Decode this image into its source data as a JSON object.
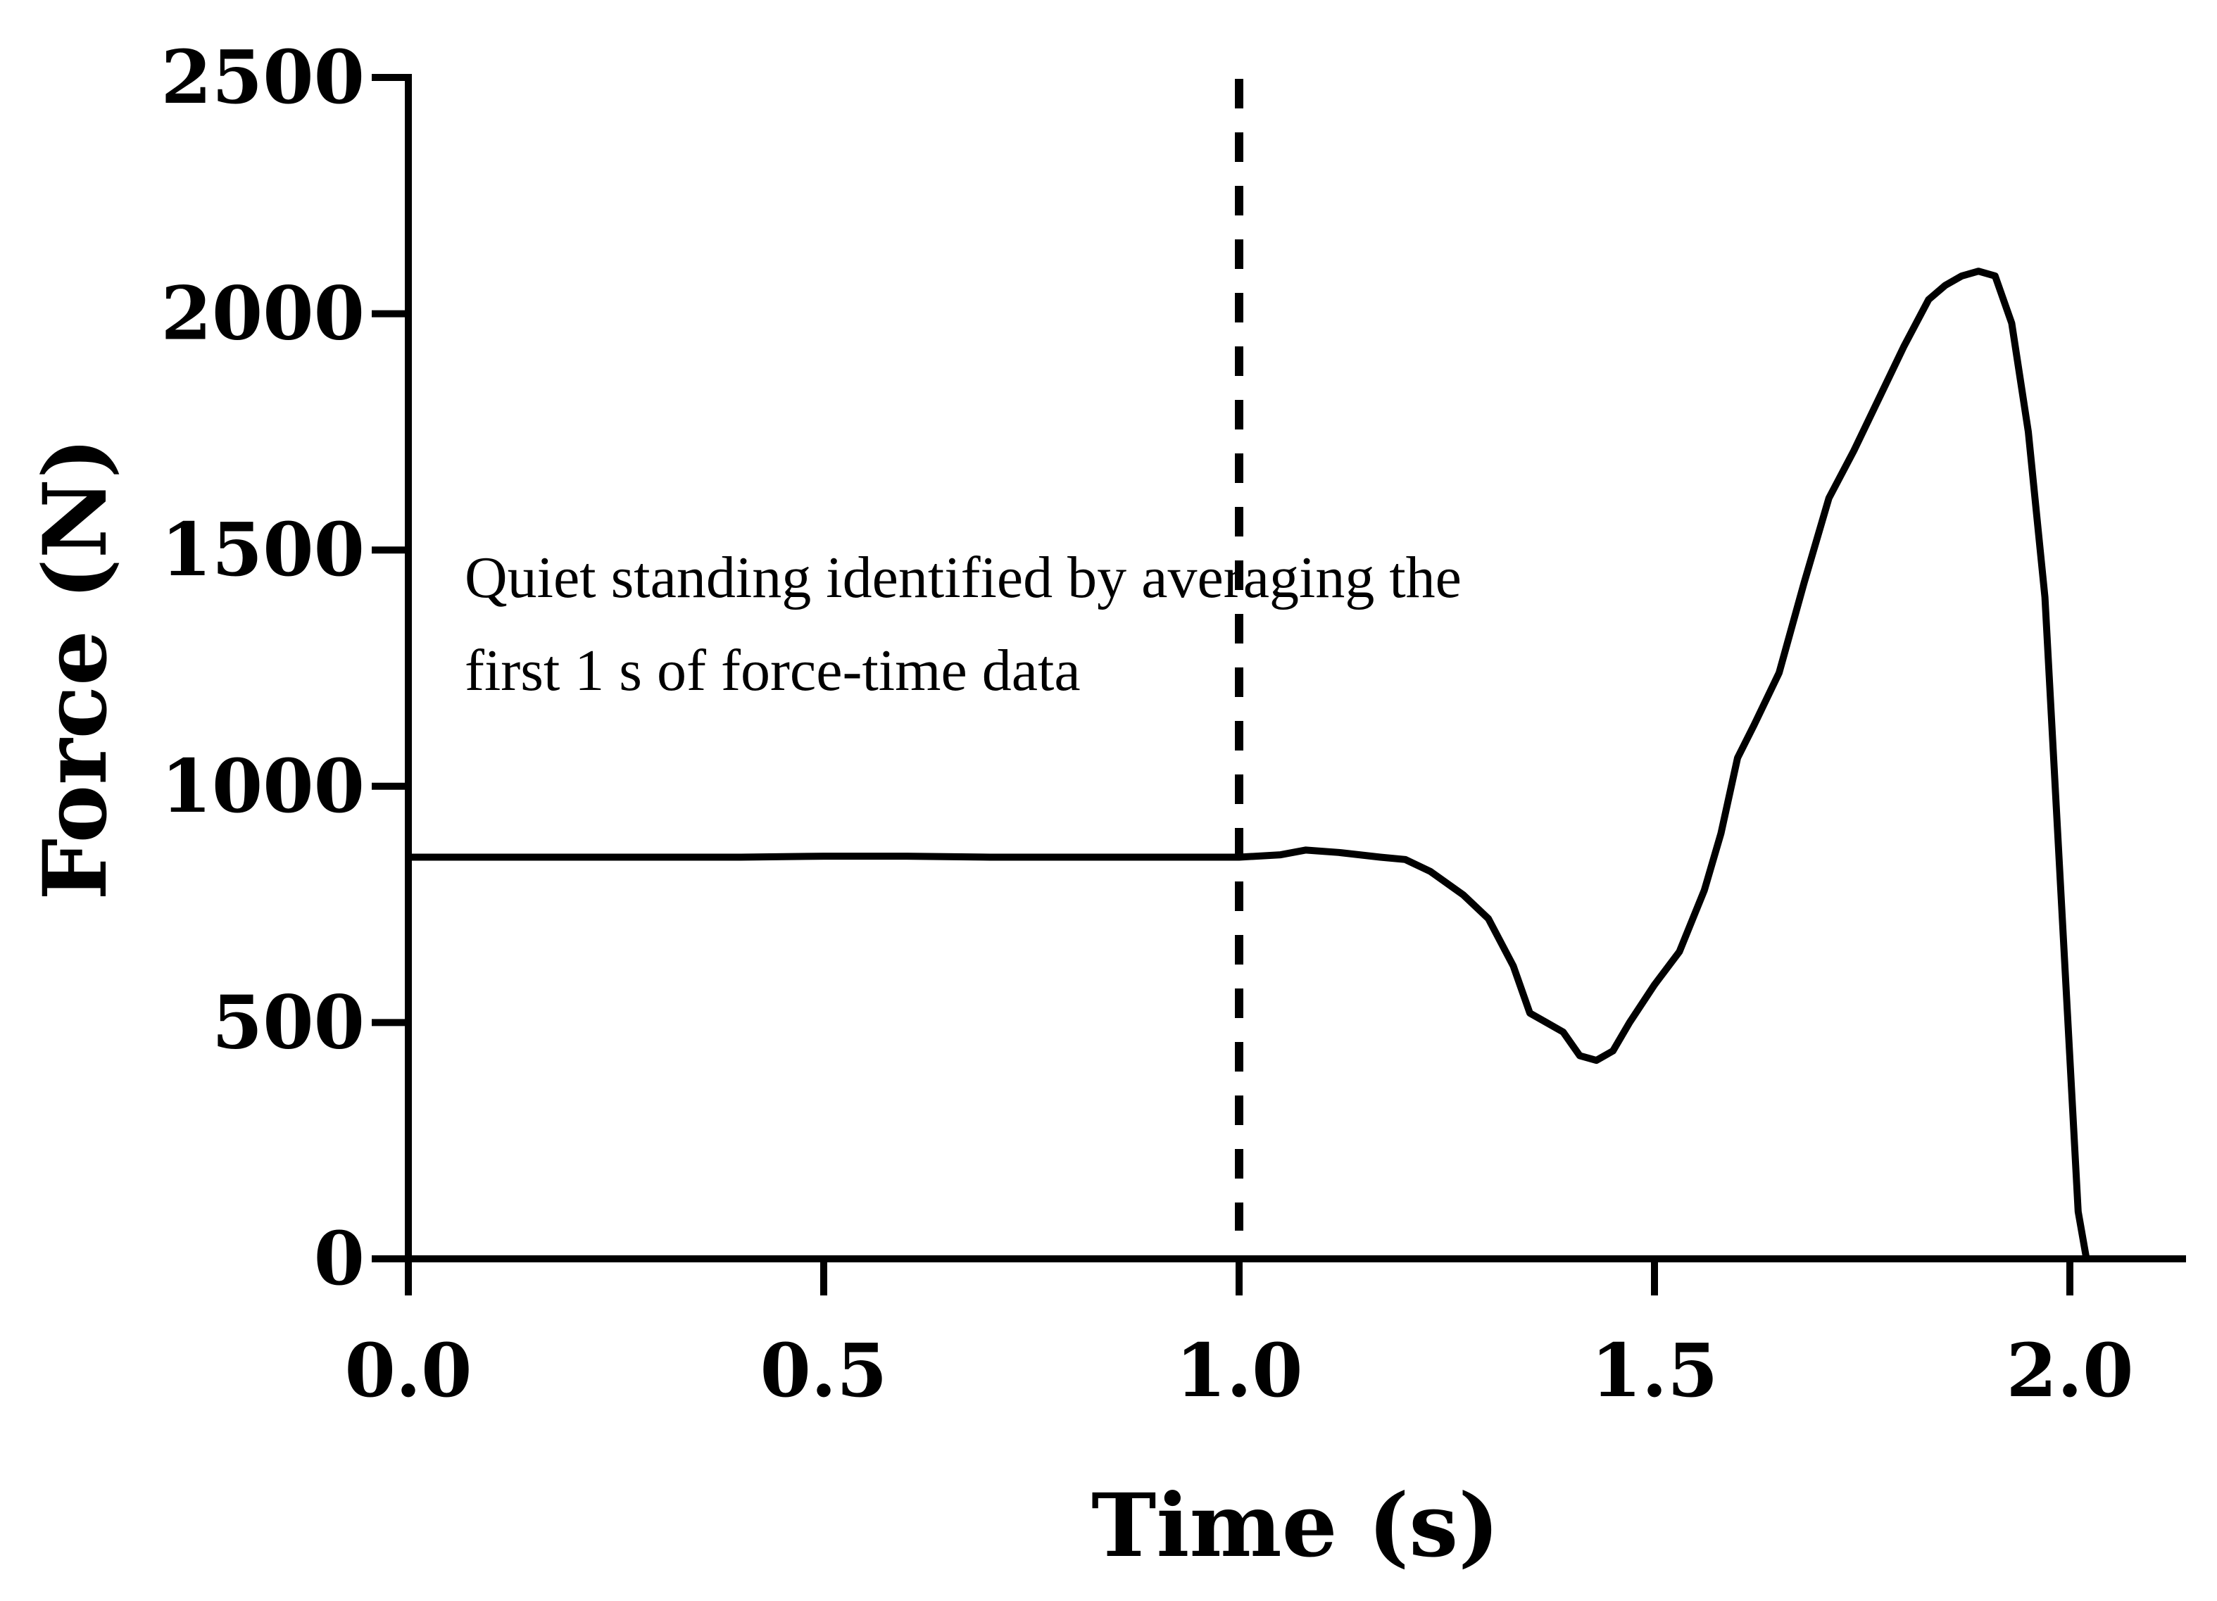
{
  "chart_data": {
    "type": "line",
    "title": "",
    "xlabel": "Time (s)",
    "ylabel": "Force (N)",
    "xlim": [
      0,
      2.13
    ],
    "ylim": [
      0,
      2500
    ],
    "xticks": [
      0,
      0.5,
      1.0,
      1.5,
      2.0
    ],
    "xtick_labels": [
      "0.0",
      "0.5",
      "1.0",
      "1.5",
      "2.0"
    ],
    "yticks": [
      0,
      500,
      1000,
      1500,
      2000,
      2500
    ],
    "ytick_labels": [
      "0",
      "500",
      "1000",
      "1500",
      "2000",
      "2500"
    ],
    "grid": false,
    "legend": "none",
    "annotation": {
      "lines": [
        "Quiet standing identified by averaging the",
        "first 1 s of force-time data"
      ]
    },
    "reference_line": {
      "x": 1.0,
      "style": "dashed"
    },
    "series": [
      {
        "name": "Force",
        "x": [
          0.0,
          0.1,
          0.2,
          0.3,
          0.4,
          0.5,
          0.6,
          0.7,
          0.8,
          0.9,
          1.0,
          1.05,
          1.08,
          1.12,
          1.17,
          1.2,
          1.23,
          1.27,
          1.3,
          1.33,
          1.35,
          1.37,
          1.39,
          1.41,
          1.43,
          1.45,
          1.47,
          1.5,
          1.53,
          1.56,
          1.58,
          1.6,
          1.62,
          1.65,
          1.68,
          1.71,
          1.74,
          1.77,
          1.8,
          1.83,
          1.85,
          1.87,
          1.89,
          1.91,
          1.93,
          1.95,
          1.97,
          1.99,
          2.01,
          2.02
        ],
        "y": [
          850,
          850,
          850,
          850,
          850,
          852,
          852,
          850,
          850,
          850,
          850,
          855,
          865,
          860,
          850,
          845,
          820,
          770,
          720,
          620,
          520,
          500,
          480,
          430,
          420,
          440,
          500,
          580,
          650,
          780,
          900,
          1060,
          1130,
          1240,
          1430,
          1610,
          1710,
          1820,
          1930,
          2030,
          2060,
          2080,
          2090,
          2080,
          1980,
          1750,
          1400,
          750,
          100,
          0
        ]
      }
    ]
  }
}
